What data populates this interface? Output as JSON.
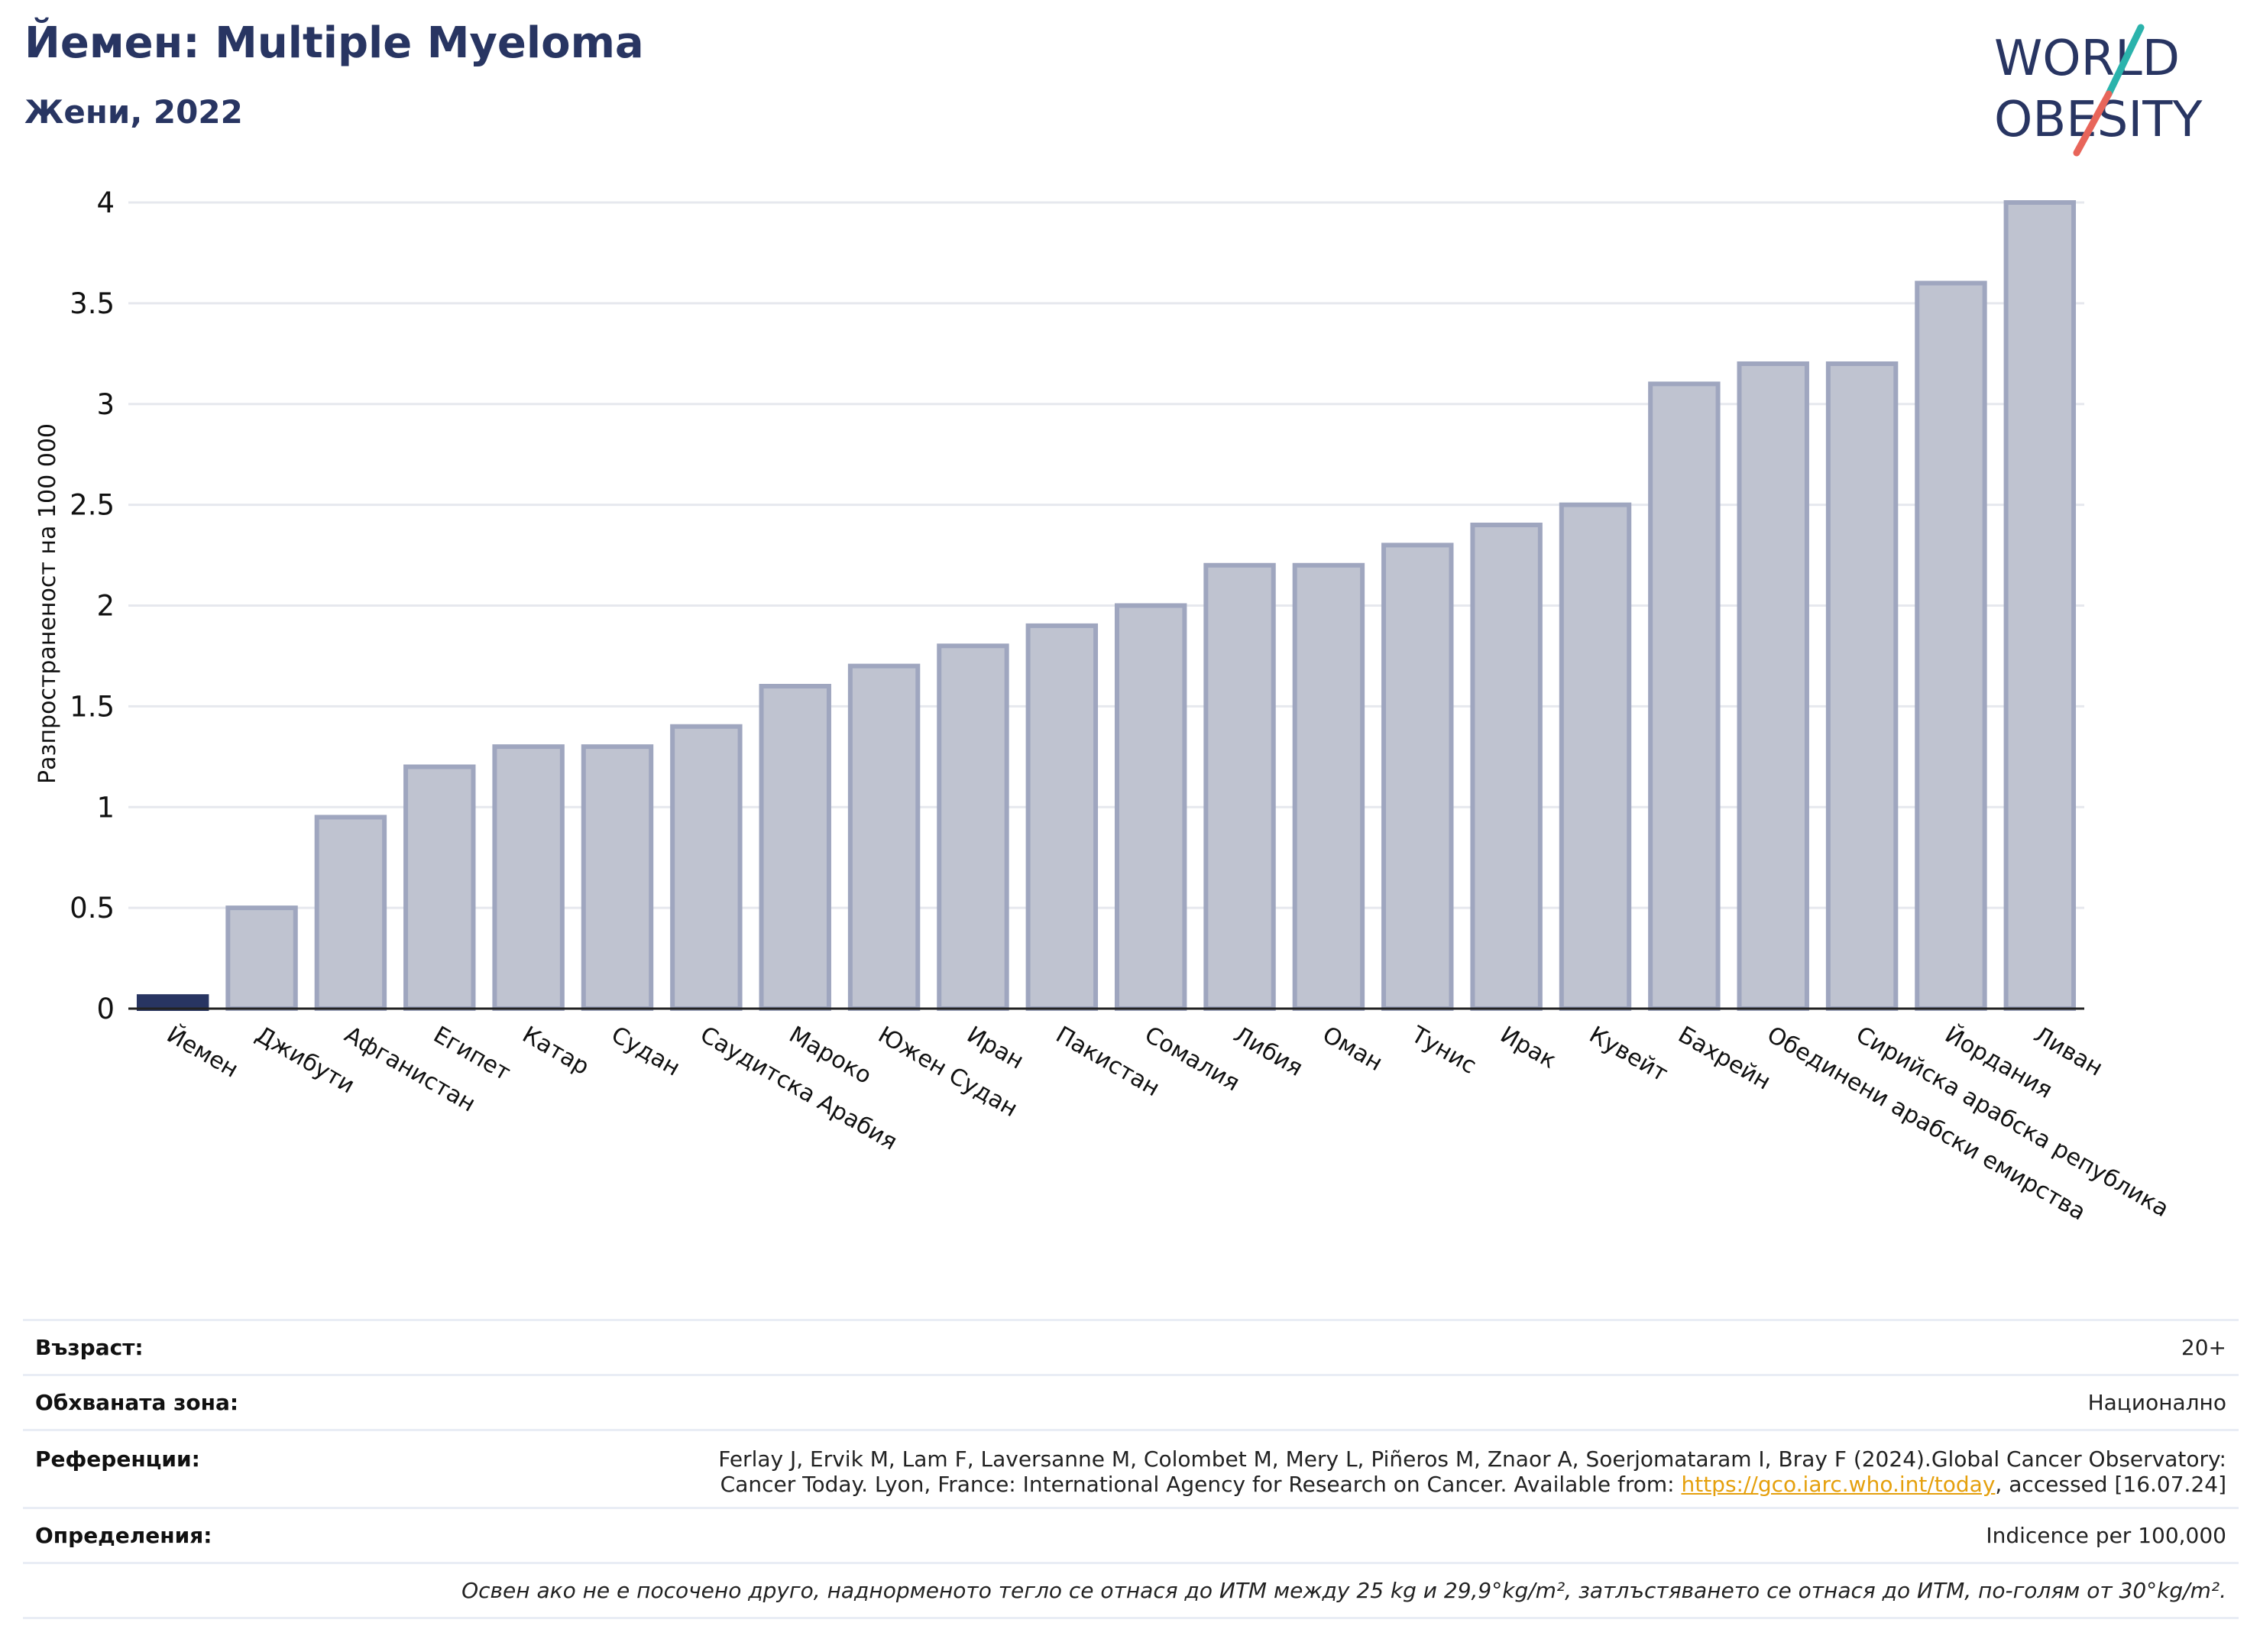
{
  "header": {
    "title": "Йемен: Multiple Myeloma",
    "subtitle": "Жени, 2022"
  },
  "logo": {
    "line1": "WORLD",
    "line2": "OBESITY",
    "colors": {
      "text": "#283562",
      "slash_top": "#2bb3ac",
      "slash_bottom": "#e8655a"
    }
  },
  "chart_data": {
    "type": "bar",
    "ylabel": "Разпространеност  на 100 000",
    "xlabel": "",
    "ylim": [
      0,
      4
    ],
    "yticks": [
      0,
      0.5,
      1,
      1.5,
      2,
      2.5,
      3,
      3.5,
      4
    ],
    "ytick_labels": [
      "0",
      "0.5",
      "1",
      "1.5",
      "2",
      "2.5",
      "3",
      "3.5",
      "4"
    ],
    "grid": true,
    "highlight_category": "Йемен",
    "colors": {
      "highlight": "#283562",
      "bar_fill": "#bfc3d0",
      "bar_stroke": "#9fa6bf",
      "grid": "#e6e8ee",
      "axis": "#222222"
    },
    "categories": [
      "Йемен",
      "Джибути",
      "Афганистан",
      "Египет",
      "Катар",
      "Судан",
      "Саудитска Арабия",
      "Мароко",
      "Южен Судан",
      "Иран",
      "Пакистан",
      "Сомалия",
      "Либия",
      "Оман",
      "Тунис",
      "Ирак",
      "Кувейт",
      "Бахрейн",
      "Обединени арабски емирства",
      "Сирийска арабска република",
      "Йордания",
      "Ливан"
    ],
    "values": [
      0.06,
      0.5,
      0.95,
      1.2,
      1.3,
      1.3,
      1.4,
      1.6,
      1.7,
      1.8,
      1.9,
      2.0,
      2.2,
      2.2,
      2.3,
      2.4,
      2.5,
      3.1,
      3.2,
      3.2,
      3.6,
      4.0
    ]
  },
  "info": {
    "age_label": "Възраст:",
    "age_value": "20+",
    "area_label": "Обхваната зона:",
    "area_value": "Национално",
    "references_label": "Референции:",
    "references_line1": "Ferlay J, Ervik M, Lam F, Laversanne M, Colombet M, Mery L, Piñeros M, Znaor A, Soerjomataram I, Bray F (2024).Global Cancer Observatory:",
    "references_line2_pre": "Cancer Today. Lyon, France: International Agency for Research on Cancer. Available from: ",
    "references_link": "https://gco.iarc.who.int/today",
    "references_line2_post": ", accessed [16.07.24]",
    "definitions_label": "Определения:",
    "definitions_value": "Indicence per 100,000",
    "note": "Освен ако не е посочено друго, наднорменото тегло се отнася до ИТМ между 25 kg и 29,9°kg/m², затлъстяването се отнася до ИТМ, по-голям от 30°kg/m²."
  }
}
